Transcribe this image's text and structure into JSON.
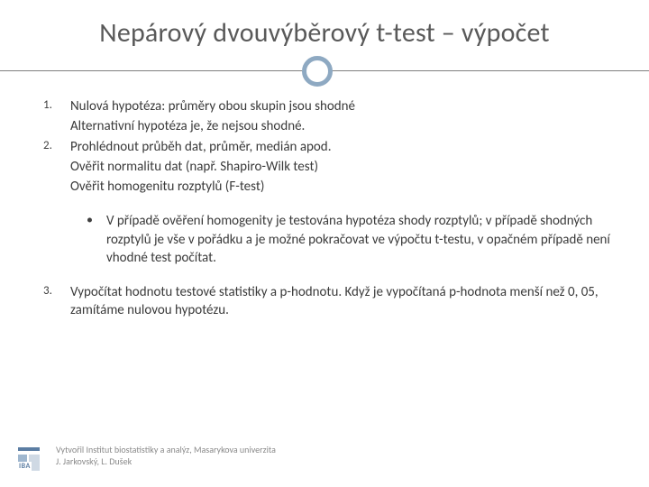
{
  "title": "Nepárový dvouvýběrový t-test – výpočet",
  "items": {
    "n1": "1.",
    "n2": "2.",
    "n3": "3.",
    "l1a": "Nulová hypotéza: průměry obou skupin jsou shodné",
    "l1b": "Alternativní hypotéza je, že nejsou shodné.",
    "l2a": "Prohlédnout průběh dat, průměr, medián apod.",
    "l2b": "Ověřit normalitu dat (např.  Shapiro-Wilk  test)",
    "l2c": "Ověřit homogenitu rozptylů (F-test)",
    "bullet": "•",
    "bt": "V případě ověření homogenity je testována hypotéza shody rozptylů; v případě shodných rozptylů je vše v pořádku a je možné pokračovat ve výpočtu t-testu, v opačném případě není vhodné test počítat.",
    "l3": "Vypočítat hodnotu testové statistiky a p-hodnotu. Když je vypočítaná p-hodnota menší než 0, 05, zamítáme nulovou hypotézu."
  },
  "footer": {
    "line1": "Vytvořil Institut biostatistiky a analýz, Masarykova univerzita",
    "line2": "J. Jarkovský, L. Dušek"
  },
  "logo_text": "IBA"
}
